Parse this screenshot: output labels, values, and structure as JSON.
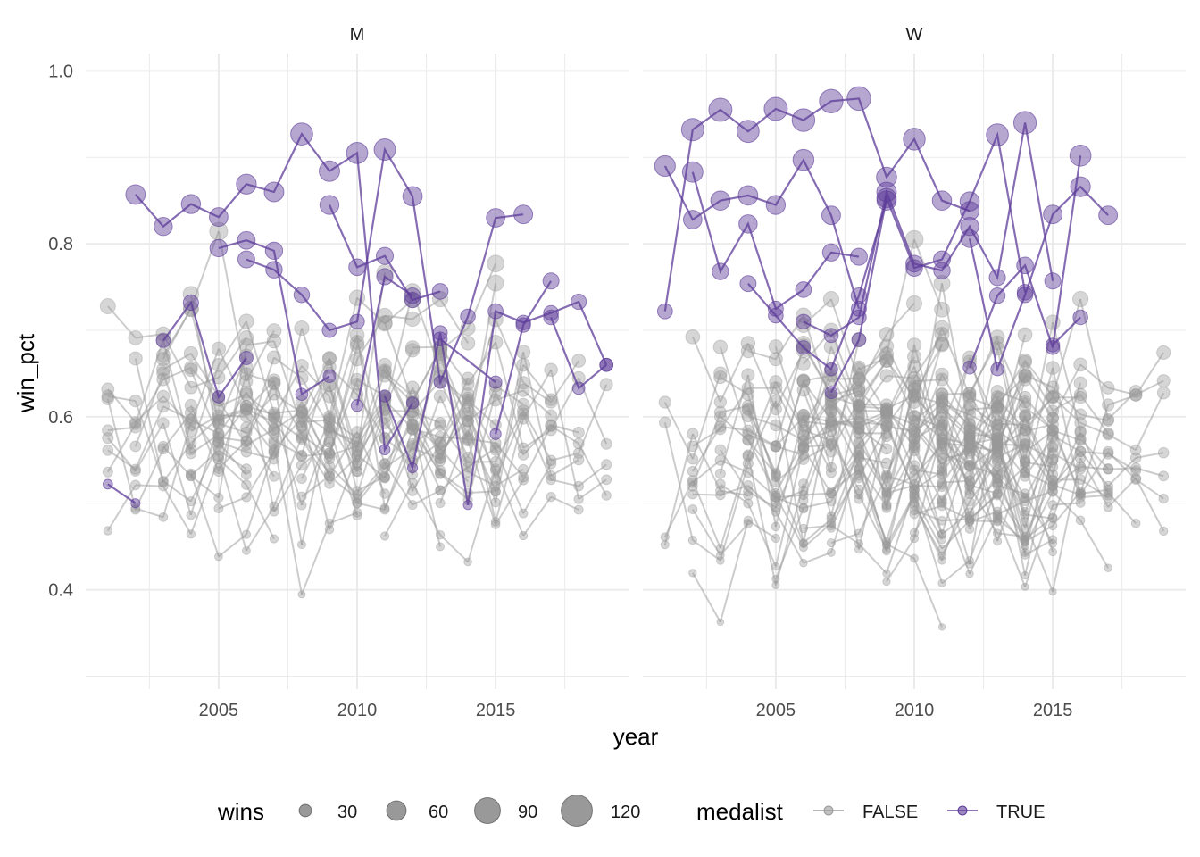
{
  "chart_data": {
    "type": "scatter",
    "xlabel": "year",
    "ylabel": "win_pct",
    "xlim": [
      2000.2,
      2019.8
    ],
    "ylim": [
      0.285,
      1.02
    ],
    "x_ticks": [
      2005,
      2010,
      2015
    ],
    "x_minor": [
      2002.5,
      2007.5,
      2012.5,
      2017.5
    ],
    "y_ticks": [
      0.4,
      0.6,
      0.8,
      1.0
    ],
    "y_tick_labels": [
      "0.4",
      "0.6",
      "0.8",
      "1.0"
    ],
    "y_minor": [
      0.3,
      0.5,
      0.7,
      0.9
    ],
    "grid": true,
    "legend_position": "bottom",
    "facets": [
      "M",
      "W"
    ],
    "colors": {
      "FALSE": "#999999",
      "TRUE": "#5e3c99",
      "grid": "#ebebeb"
    },
    "size_legend": {
      "title": "wins",
      "values": [
        30,
        60,
        90,
        120
      ],
      "labels": [
        "30",
        "60",
        "90",
        "120"
      ]
    },
    "color_legend": {
      "title": "medalist",
      "labels": [
        "FALSE",
        "TRUE"
      ]
    },
    "medalist_series": {
      "M": [
        [
          [
            2002,
            0.857
          ],
          [
            2003,
            0.82
          ],
          [
            2004,
            0.846
          ],
          [
            2005,
            0.831
          ],
          [
            2006,
            0.869
          ],
          [
            2007,
            0.86
          ],
          [
            2008,
            0.927
          ],
          [
            2009,
            0.884
          ],
          [
            2010,
            0.905
          ],
          [
            2011,
            0.562
          ],
          [
            2012,
            0.616
          ]
        ],
        [
          [
            2003,
            0.688
          ],
          [
            2004,
            0.732
          ],
          [
            2005,
            0.623
          ],
          [
            2006,
            0.668
          ]
        ],
        [
          [
            2005,
            0.795
          ],
          [
            2006,
            0.804
          ],
          [
            2007,
            0.792
          ],
          [
            2008,
            0.626
          ],
          [
            2009,
            0.647
          ]
        ],
        [
          [
            2006,
            0.782
          ],
          [
            2007,
            0.77
          ],
          [
            2008,
            0.741
          ],
          [
            2009,
            0.7
          ],
          [
            2010,
            0.71
          ],
          [
            2011,
            0.909
          ],
          [
            2012,
            0.855
          ],
          [
            2013,
            0.64
          ],
          [
            2014,
            0.716
          ],
          [
            2015,
            0.83
          ],
          [
            2016,
            0.834
          ]
        ],
        [
          [
            2009,
            0.845
          ],
          [
            2010,
            0.773
          ],
          [
            2011,
            0.786
          ],
          [
            2012,
            0.735
          ],
          [
            2013,
            0.745
          ]
        ],
        [
          [
            2010,
            0.613
          ],
          [
            2011,
            0.762
          ],
          [
            2012,
            0.74
          ]
        ],
        [
          [
            2011,
            0.624
          ],
          [
            2012,
            0.541
          ],
          [
            2013,
            0.697
          ],
          [
            2014,
            0.498
          ],
          [
            2015,
            0.722
          ],
          [
            2016,
            0.709
          ],
          [
            2017,
            0.72
          ],
          [
            2018,
            0.733
          ],
          [
            2019,
            0.66
          ]
        ],
        [
          [
            2001,
            0.522
          ],
          [
            2002,
            0.5
          ]
        ],
        [
          [
            2013,
            0.69
          ],
          [
            2015,
            0.64
          ]
        ],
        [
          [
            2015,
            0.58
          ],
          [
            2016,
            0.706
          ],
          [
            2017,
            0.757
          ]
        ],
        [
          [
            2017,
            0.715
          ],
          [
            2018,
            0.633
          ],
          [
            2019,
            0.66
          ]
        ]
      ],
      "W": [
        [
          [
            2001,
            0.89
          ],
          [
            2002,
            0.828
          ],
          [
            2003,
            0.85
          ],
          [
            2004,
            0.856
          ],
          [
            2005,
            0.845
          ],
          [
            2006,
            0.897
          ],
          [
            2007,
            0.833
          ],
          [
            2008,
            0.725
          ]
        ],
        [
          [
            2001,
            0.722
          ],
          [
            2002,
            0.932
          ],
          [
            2003,
            0.955
          ],
          [
            2004,
            0.93
          ],
          [
            2005,
            0.956
          ],
          [
            2006,
            0.943
          ],
          [
            2007,
            0.965
          ],
          [
            2008,
            0.968
          ],
          [
            2009,
            0.877
          ],
          [
            2010,
            0.921
          ],
          [
            2011,
            0.85
          ],
          [
            2012,
            0.838
          ]
        ],
        [
          [
            2002,
            0.883
          ],
          [
            2003,
            0.768
          ],
          [
            2004,
            0.823
          ],
          [
            2005,
            0.725
          ],
          [
            2006,
            0.747
          ],
          [
            2007,
            0.79
          ],
          [
            2008,
            0.785
          ]
        ],
        [
          [
            2004,
            0.754
          ],
          [
            2005,
            0.717
          ],
          [
            2006,
            0.68
          ],
          [
            2007,
            0.655
          ],
          [
            2008,
            0.74
          ],
          [
            2009,
            0.85
          ]
        ],
        [
          [
            2006,
            0.71
          ],
          [
            2007,
            0.694
          ],
          [
            2008,
            0.715
          ],
          [
            2009,
            0.86
          ],
          [
            2010,
            0.777
          ],
          [
            2011,
            0.769
          ],
          [
            2012,
            0.82
          ],
          [
            2013,
            0.761
          ],
          [
            2014,
            0.94
          ],
          [
            2015,
            0.757
          ]
        ],
        [
          [
            2007,
            0.628
          ],
          [
            2008,
            0.689
          ],
          [
            2009,
            0.853
          ],
          [
            2010,
            0.772
          ],
          [
            2011,
            0.782
          ],
          [
            2012,
            0.849
          ],
          [
            2013,
            0.926
          ],
          [
            2014,
            0.744
          ]
        ],
        [
          [
            2012,
            0.806
          ],
          [
            2013,
            0.655
          ],
          [
            2014,
            0.741
          ],
          [
            2015,
            0.834
          ],
          [
            2016,
            0.866
          ],
          [
            2017,
            0.833
          ]
        ],
        [
          [
            2012,
            0.657
          ],
          [
            2013,
            0.74
          ],
          [
            2014,
            0.775
          ],
          [
            2015,
            0.68
          ],
          [
            2016,
            0.902
          ]
        ],
        [
          [
            2015,
            0.683
          ],
          [
            2016,
            0.715
          ]
        ]
      ]
    }
  }
}
